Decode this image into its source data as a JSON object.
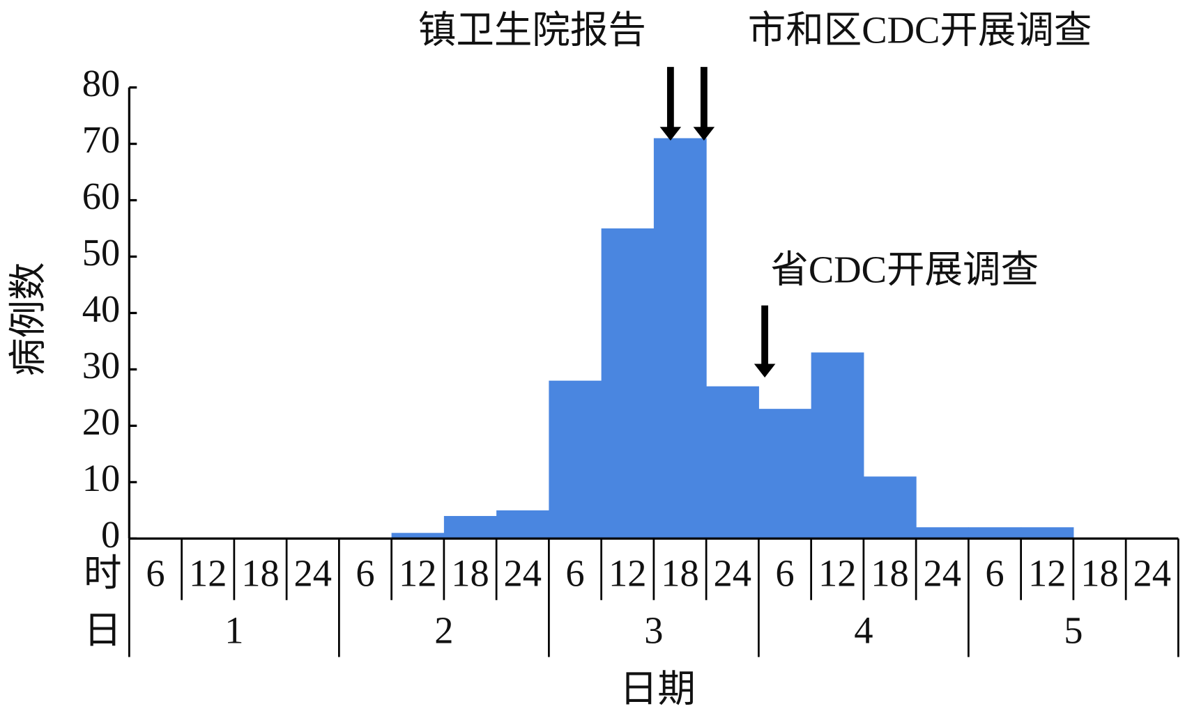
{
  "chart_data": {
    "type": "bar",
    "y_label": "病例数",
    "x_label": "日期",
    "hour_row_label": "时",
    "day_row_label": "日",
    "categories": [
      "6",
      "12",
      "18",
      "24",
      "6",
      "12",
      "18",
      "24",
      "6",
      "12",
      "18",
      "24",
      "6",
      "12",
      "18",
      "24",
      "6",
      "12",
      "18",
      "24"
    ],
    "days": [
      "1",
      "2",
      "3",
      "4",
      "5"
    ],
    "values": [
      0,
      0,
      0,
      0,
      0,
      1,
      4,
      5,
      28,
      55,
      71,
      27,
      23,
      33,
      11,
      2,
      2,
      2,
      0,
      0
    ],
    "color": "#4a86e0",
    "ylim": [
      0,
      80
    ],
    "yticks": [
      0,
      10,
      20,
      30,
      40,
      50,
      60,
      70,
      80
    ],
    "annotations": [
      "镇卫生院报告",
      "市和区CDC开展调查",
      "省CDC开展调查"
    ]
  }
}
